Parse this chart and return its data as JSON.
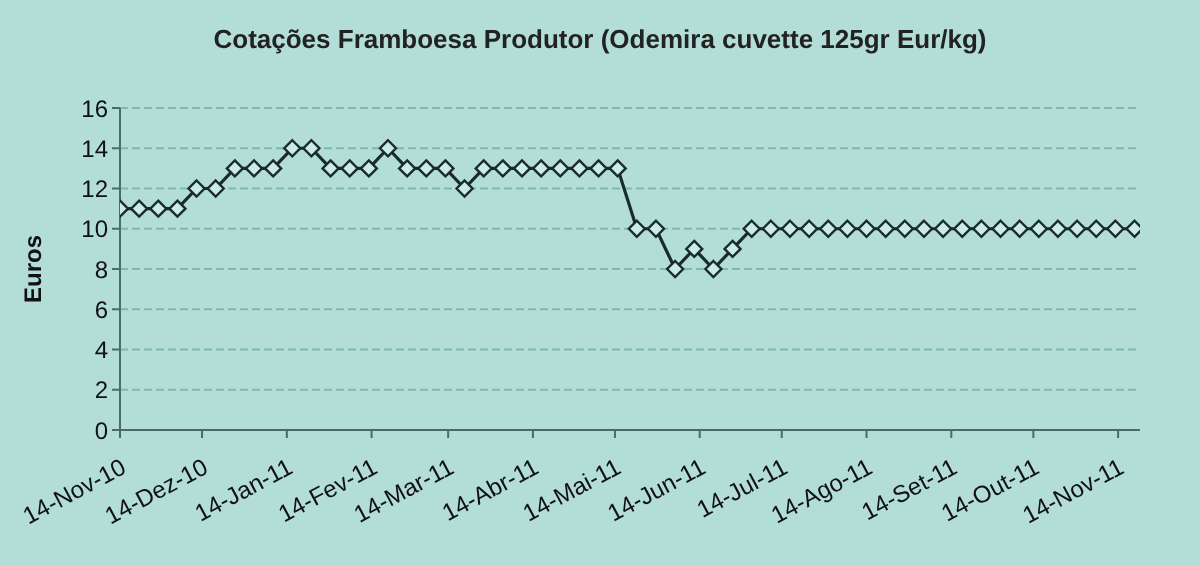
{
  "chart_data": {
    "type": "line",
    "title": "Cotações Framboesa Produtor (Odemira cuvette 125gr Eur/kg)",
    "ylabel": "Euros",
    "x": [
      "2010-11-14",
      "2010-11-21",
      "2010-11-28",
      "2010-12-05",
      "2010-12-12",
      "2010-12-19",
      "2010-12-26",
      "2011-01-02",
      "2011-01-09",
      "2011-01-16",
      "2011-01-23",
      "2011-01-30",
      "2011-02-06",
      "2011-02-13",
      "2011-02-20",
      "2011-02-27",
      "2011-03-06",
      "2011-03-13",
      "2011-03-20",
      "2011-03-27",
      "2011-04-03",
      "2011-04-10",
      "2011-04-17",
      "2011-04-24",
      "2011-05-01",
      "2011-05-08",
      "2011-05-15",
      "2011-05-22",
      "2011-05-29",
      "2011-06-05",
      "2011-06-12",
      "2011-06-19",
      "2011-06-26",
      "2011-07-03",
      "2011-07-10",
      "2011-07-17",
      "2011-07-24",
      "2011-07-31",
      "2011-08-07",
      "2011-08-14",
      "2011-08-21",
      "2011-08-28",
      "2011-09-04",
      "2011-09-11",
      "2011-09-18",
      "2011-09-25",
      "2011-10-02",
      "2011-10-09",
      "2011-10-16",
      "2011-10-23",
      "2011-10-30",
      "2011-11-06",
      "2011-11-13",
      "2011-11-20"
    ],
    "series": [
      {
        "color": "#1a2b2b",
        "values": [
          11,
          11,
          11,
          11,
          12,
          12,
          13,
          13,
          13,
          14,
          14,
          13,
          13,
          13,
          14,
          13,
          13,
          13,
          12,
          13,
          13,
          13,
          13,
          13,
          13,
          13,
          13,
          10,
          10,
          8,
          9,
          8,
          9,
          10,
          10,
          10,
          10,
          10,
          10,
          10,
          10,
          10,
          10,
          10,
          10,
          10,
          10,
          10,
          10,
          10,
          10,
          10,
          10,
          10
        ]
      }
    ],
    "xlim": [
      "2010-11-14",
      "2011-11-22"
    ],
    "xticks": [
      {
        "value": "2010-11-14",
        "label": "14-Nov-10"
      },
      {
        "value": "2010-12-14",
        "label": "14-Dez-10"
      },
      {
        "value": "2011-01-14",
        "label": "14-Jan-11"
      },
      {
        "value": "2011-02-14",
        "label": "14-Fev-11"
      },
      {
        "value": "2011-03-14",
        "label": "14-Mar-11"
      },
      {
        "value": "2011-04-14",
        "label": "14-Abr-11"
      },
      {
        "value": "2011-05-14",
        "label": "14-Mai-11"
      },
      {
        "value": "2011-06-14",
        "label": "14-Jun-11"
      },
      {
        "value": "2011-07-14",
        "label": "14-Jul-11"
      },
      {
        "value": "2011-08-14",
        "label": "14-Ago-11"
      },
      {
        "value": "2011-09-14",
        "label": "14-Set-11"
      },
      {
        "value": "2011-10-14",
        "label": "14-Out-11"
      },
      {
        "value": "2011-11-14",
        "label": "14-Nov-11"
      }
    ],
    "ylim": [
      0,
      16
    ],
    "yticks": [
      0,
      2,
      4,
      6,
      8,
      10,
      12,
      14,
      16
    ],
    "grid": "y",
    "marker": "diamond",
    "line_style": "solid",
    "legend": false
  }
}
